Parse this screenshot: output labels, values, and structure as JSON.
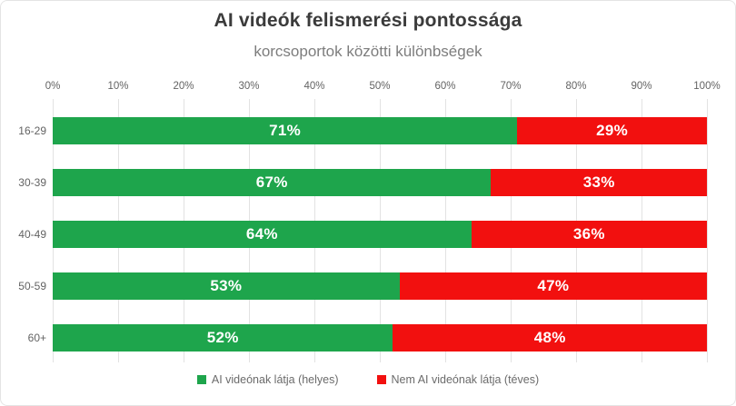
{
  "chart_data": {
    "type": "bar",
    "orientation": "horizontal-stacked",
    "title": "AI videók felismerési pontossága",
    "subtitle": "korcsoportok közötti különbségek",
    "categories": [
      "16-29",
      "30-39",
      "40-49",
      "50-59",
      "60+"
    ],
    "series": [
      {
        "name": "AI videónak látja (helyes)",
        "color": "#1ea54c",
        "values": [
          71,
          67,
          64,
          53,
          52
        ]
      },
      {
        "name": "Nem AI videónak látja (téves)",
        "color": "#f2100f",
        "values": [
          29,
          33,
          36,
          47,
          48
        ]
      }
    ],
    "data_labels": [
      [
        "71%",
        "29%"
      ],
      [
        "67%",
        "33%"
      ],
      [
        "64%",
        "36%"
      ],
      [
        "53%",
        "47%"
      ],
      [
        "52%",
        "48%"
      ]
    ],
    "x_ticks": [
      "0%",
      "10%",
      "20%",
      "30%",
      "40%",
      "50%",
      "60%",
      "70%",
      "80%",
      "90%",
      "100%"
    ],
    "xlim": [
      0,
      100
    ],
    "grid": true,
    "grid_color": "#e2e2e2",
    "title_color": "#3b3b3b",
    "subtitle_color": "#7d7d7d",
    "axis_text_color": "#636363",
    "legend_position": "bottom"
  }
}
